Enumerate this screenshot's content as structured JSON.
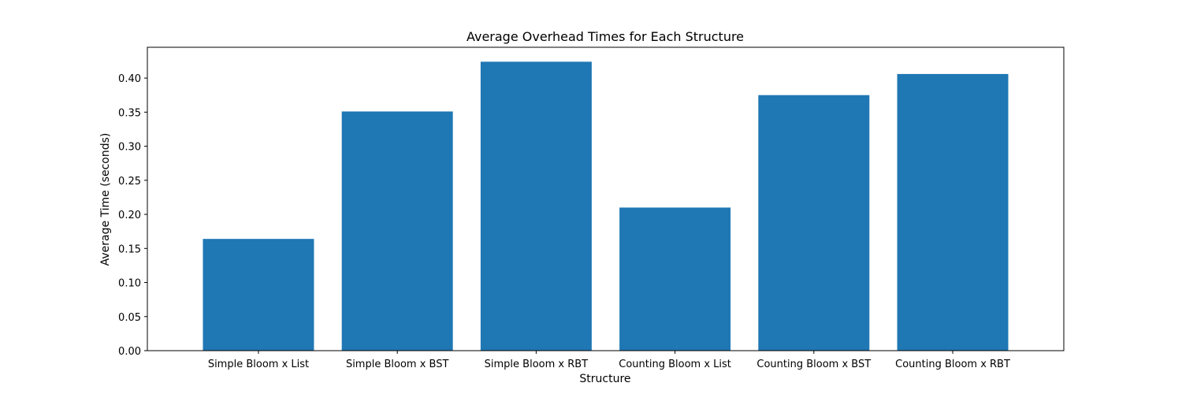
{
  "chart_data": {
    "type": "bar",
    "title": "Average Overhead Times for Each Structure",
    "xlabel": "Structure",
    "ylabel": "Average Time (seconds)",
    "categories": [
      "Simple Bloom x List",
      "Simple Bloom x BST",
      "Simple Bloom x RBT",
      "Counting Bloom x List",
      "Counting Bloom x BST",
      "Counting Bloom x RBT"
    ],
    "values": [
      0.164,
      0.351,
      0.424,
      0.21,
      0.375,
      0.406
    ],
    "ylim": [
      0,
      0.4452
    ],
    "yticks": [
      0.0,
      0.05,
      0.1,
      0.15,
      0.2,
      0.25,
      0.3,
      0.35,
      0.4
    ],
    "ytick_labels": [
      "0.00",
      "0.05",
      "0.10",
      "0.15",
      "0.20",
      "0.25",
      "0.30",
      "0.35",
      "0.40"
    ],
    "grid": false,
    "legend": "none",
    "colors": {
      "bar": "#1f77b4",
      "axis": "#000000",
      "background": "#ffffff"
    }
  }
}
